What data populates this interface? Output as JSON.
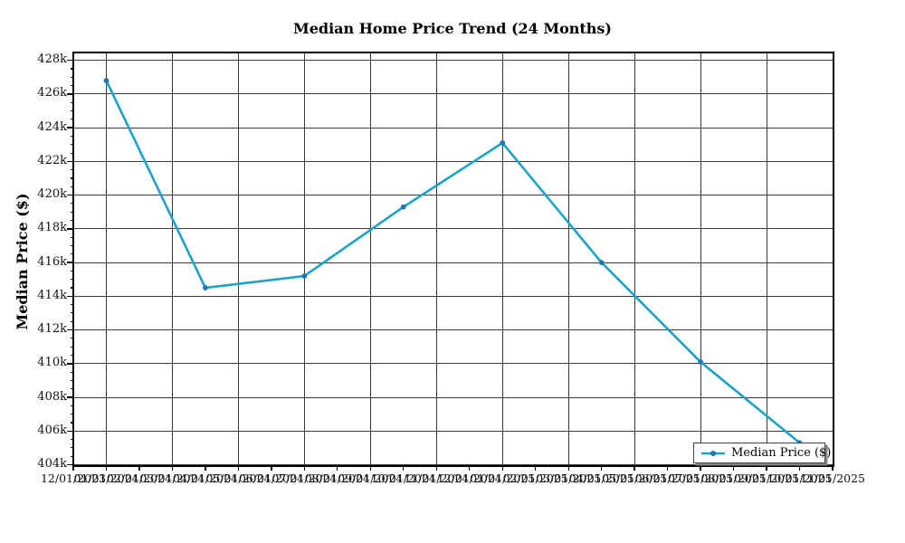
{
  "chart_data": {
    "type": "line",
    "title": "Median Home Price Trend (24 Months)",
    "xlabel": "",
    "ylabel": "Median Price ($)",
    "grid": "on",
    "legend": {
      "label": "Median Price ($)",
      "position": "lower right",
      "shadow": true,
      "border_color": "#454545"
    },
    "ylim": [
      404000,
      428440
    ],
    "yticks": {
      "min": 404000,
      "max": 428000,
      "step": 2000,
      "minor_step": 500
    },
    "y_tick_labels": [
      "404k",
      "406k",
      "408k",
      "410k",
      "412k",
      "414k",
      "416k",
      "418k",
      "420k",
      "422k",
      "424k",
      "426k",
      "428k"
    ],
    "x_tick_labels": [
      "12/01/2023",
      "01/01/2024",
      "02/01/2024",
      "03/01/2024",
      "04/01/2024",
      "05/01/2024",
      "06/01/2024",
      "07/01/2024",
      "08/01/2024",
      "09/01/2024",
      "10/01/2024",
      "11/01/2024",
      "12/01/2024",
      "01/01/2025",
      "02/01/2025",
      "03/01/2025",
      "04/01/2025",
      "05/01/2025",
      "06/01/2025",
      "07/01/2025",
      "08/01/2025",
      "09/01/2025",
      "10/01/2025",
      "11/01/2025"
    ],
    "x_gridline_indices": [
      1,
      3,
      5,
      7,
      9,
      11,
      13,
      15,
      17,
      19,
      21,
      23
    ],
    "series": [
      {
        "name": "Median Price ($)",
        "line_color": "#1aa3c7",
        "marker_color": "#1f77b4",
        "dates": [
          "01/01/2024",
          "04/01/2024",
          "07/01/2024",
          "10/01/2024",
          "01/01/2025",
          "04/01/2025",
          "07/01/2025",
          "10/01/2025"
        ],
        "month_indices": [
          1,
          4,
          7,
          10,
          13,
          16,
          19,
          22
        ],
        "values": [
          426800,
          414500,
          415200,
          419300,
          423100,
          416000,
          410100,
          405300
        ]
      }
    ],
    "colors": {
      "grid": "#3a3a3a",
      "spine": "#000000",
      "text": "#111111",
      "background": "#ffffff"
    }
  }
}
